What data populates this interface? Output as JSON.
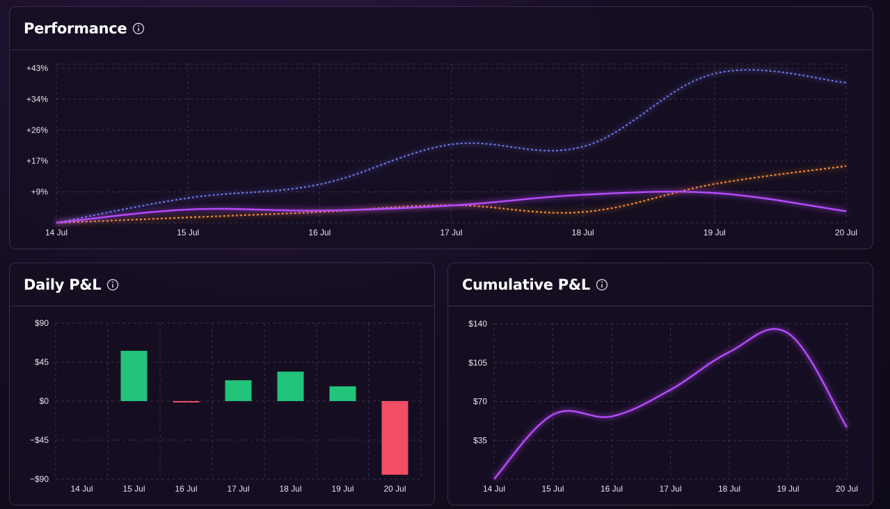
{
  "colors": {
    "bg": "#150d22",
    "card_bg": "#160e22",
    "border": "#3a2c4c",
    "purple": "#b84cff",
    "blue": "#6b74e6",
    "orange": "#f28a2e",
    "green": "#22c47a",
    "red": "#f24e66"
  },
  "icons": {
    "info": "info-circle-icon"
  },
  "cards": {
    "performance": {
      "title": "Performance"
    },
    "daily": {
      "title": "Daily P&L"
    },
    "cumulative": {
      "title": "Cumulative P&L"
    }
  },
  "chart_data": [
    {
      "id": "performance",
      "type": "line",
      "x": [
        "14 Jul",
        "15 Jul",
        "16 Jul",
        "17 Jul",
        "18 Jul",
        "19 Jul",
        "20 Jul"
      ],
      "y_ticks": [
        "+9%",
        "+17%",
        "+26%",
        "+34%",
        "+43%"
      ],
      "y_tick_values": [
        8.6,
        17.2,
        25.8,
        34.4,
        43.0
      ],
      "ylim": [
        0,
        43
      ],
      "grid": true,
      "series": [
        {
          "values": [
            0,
            3.7,
            3.4,
            4.8,
            7.8,
            8.3,
            3.2
          ],
          "color": "#b84cff",
          "style": "solid"
        },
        {
          "values": [
            0,
            6.9,
            10.7,
            21.8,
            21.2,
            41.5,
            39.0
          ],
          "color": "#6b74e6",
          "style": "dotted"
        },
        {
          "values": [
            0,
            1.5,
            3.0,
            4.9,
            3.0,
            10.8,
            15.8
          ],
          "color": "#f28a2e",
          "style": "dotted"
        }
      ]
    },
    {
      "id": "daily",
      "type": "bar",
      "categories": [
        "14 Jul",
        "15 Jul",
        "16 Jul",
        "17 Jul",
        "18 Jul",
        "19 Jul",
        "20 Jul"
      ],
      "values": [
        0,
        58,
        -1.5,
        24,
        34,
        17,
        -85
      ],
      "y_ticks": [
        "−$90",
        "−$45",
        "$0",
        "$45",
        "$90"
      ],
      "y_tick_values": [
        -90,
        -45,
        0,
        45,
        90
      ],
      "ylim": [
        -90,
        90
      ],
      "grid": true
    },
    {
      "id": "cumulative",
      "type": "line",
      "x": [
        "14 Jul",
        "15 Jul",
        "16 Jul",
        "17 Jul",
        "18 Jul",
        "19 Jul",
        "20 Jul"
      ],
      "values": [
        0,
        58,
        56.5,
        80.5,
        114.5,
        131.5,
        46.5
      ],
      "y_ticks": [
        "$35",
        "$70",
        "$105",
        "$140"
      ],
      "y_tick_values": [
        35,
        70,
        105,
        140
      ],
      "ylim": [
        0,
        140
      ],
      "grid": true,
      "color": "#b84cff"
    }
  ]
}
